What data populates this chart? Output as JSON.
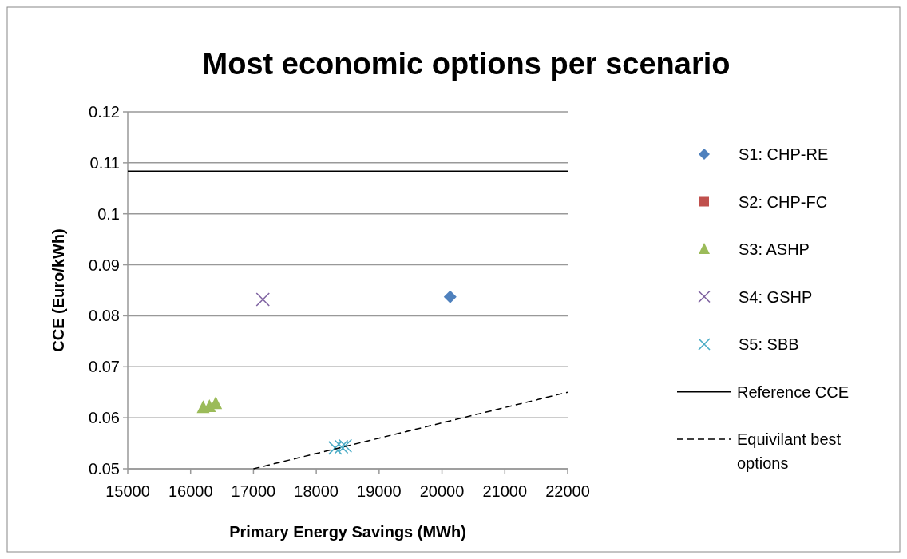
{
  "chart_data": {
    "type": "scatter",
    "title": "Most economic options per scenario",
    "xlabel": "Primary Energy Savings (MWh)",
    "ylabel": "CCE (Euro/kWh)",
    "xlim": [
      15000,
      22000
    ],
    "xticks": [
      15000,
      16000,
      17000,
      18000,
      19000,
      20000,
      21000,
      22000
    ],
    "ylim": [
      0.05,
      0.12
    ],
    "yticks": [
      0.05,
      0.06,
      0.07,
      0.08,
      0.09,
      0.1,
      0.11,
      0.12
    ],
    "grid": "y",
    "legend": "right",
    "series": [
      {
        "name": "S1: CHP-RE",
        "color": "#4f81bd",
        "marker": "diamond",
        "x": [
          20130
        ],
        "values": [
          0.0837
        ]
      },
      {
        "name": "S2: CHP-FC",
        "color": "#c0504d",
        "marker": "square"
      },
      {
        "name": "S3: ASHP",
        "color": "#9bbb59",
        "marker": "triangle",
        "x": [
          16200,
          16300,
          16400
        ],
        "values": [
          0.062,
          0.0622,
          0.0628
        ]
      },
      {
        "name": "S4: GSHP",
        "color": "#8064a2",
        "marker": "cross",
        "x": [
          17150
        ],
        "values": [
          0.0832
        ]
      },
      {
        "name": "S5: SBB",
        "color": "#4bacc6",
        "marker": "cross",
        "x": [
          18300,
          18400,
          18460
        ],
        "values": [
          0.0541,
          0.0543,
          0.0545
        ]
      },
      {
        "name": "Reference CCE",
        "type": "line",
        "color": "#000000",
        "line_style": "solid",
        "marker": "none",
        "x": [
          15000,
          22000
        ],
        "values": [
          0.1083,
          0.1083
        ]
      },
      {
        "name": "Equivilant best options",
        "type": "line",
        "color": "#000000",
        "line_style": "dashed",
        "marker": "none",
        "x": [
          17000,
          22000
        ],
        "values": [
          0.05,
          0.065
        ]
      }
    ]
  }
}
